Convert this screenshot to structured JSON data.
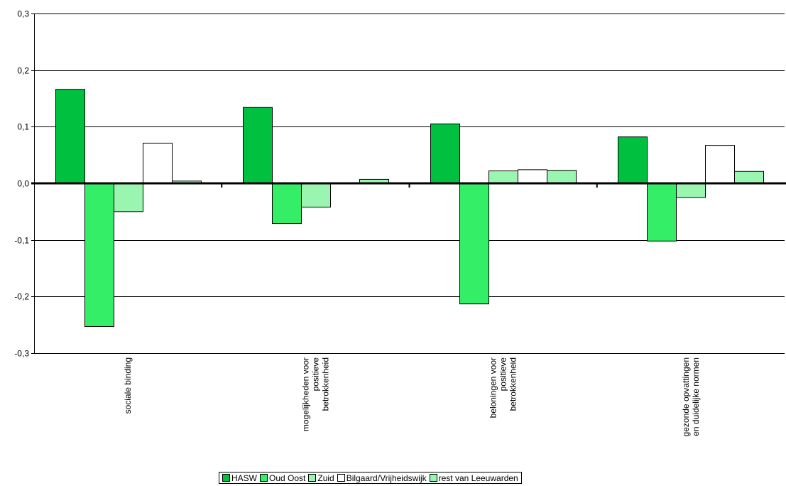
{
  "chart_data": {
    "type": "bar",
    "categories": [
      [
        "sociale binding"
      ],
      [
        "mogelijkheden voor",
        "positieve",
        "betrokkenheid"
      ],
      [
        "beloningen voor",
        "positieve",
        "betrokkenheid"
      ],
      [
        "gezonde opvattingen",
        "en duidelijke normen"
      ]
    ],
    "series": [
      {
        "name": "HASW",
        "color": "#00c040",
        "values": [
          0.166,
          0.134,
          0.105,
          0.082
        ]
      },
      {
        "name": "Oud Oost",
        "color": "#33ee66",
        "values": [
          -0.253,
          -0.071,
          -0.213,
          -0.102
        ]
      },
      {
        "name": "Zuid",
        "color": "#99f5b0",
        "values": [
          -0.05,
          -0.042,
          0.022,
          -0.025
        ]
      },
      {
        "name": "Bilgaard/Vrijheidswijk",
        "color": "#ffffff",
        "values": [
          0.071,
          0.0,
          0.024,
          0.067
        ]
      },
      {
        "name": "rest van Leeuwarden",
        "color": "#99f5b0",
        "values": [
          0.004,
          0.007,
          0.023,
          0.021
        ]
      }
    ],
    "ylim": [
      -0.3,
      0.3
    ],
    "yticks": [
      0.3,
      0.2,
      0.1,
      0.0,
      -0.1,
      -0.2,
      -0.3
    ],
    "ytick_labels": [
      "0,3",
      "0,2",
      "0,1",
      "0,0",
      "-0,1",
      "-0,2",
      "-0,3"
    ],
    "grid": true,
    "legend_position": "bottom",
    "title": "",
    "xlabel": "",
    "ylabel": ""
  }
}
